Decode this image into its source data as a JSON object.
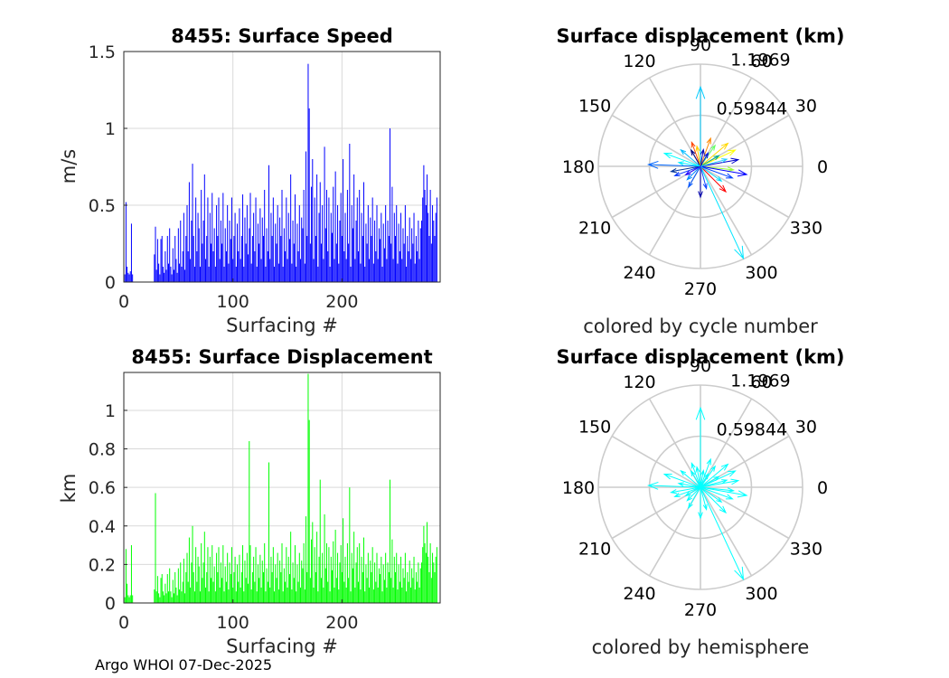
{
  "chart_data": [
    {
      "type": "bar",
      "title": "8455: Surface Speed",
      "xlabel": "Surfacing #",
      "ylabel": "m/s",
      "xlim": [
        0,
        290
      ],
      "ylim": [
        0,
        1.5
      ],
      "xticks": [
        0,
        100,
        200
      ],
      "yticks": [
        0,
        0.5,
        1,
        1.5
      ],
      "xtick_labels": [
        "0",
        "100",
        "200"
      ],
      "ytick_labels": [
        "0",
        "0.5",
        "1",
        "1.5"
      ],
      "color": "#0000ff",
      "series": [
        {
          "name": "speed",
          "values": [
            0.05,
            0.52,
            0.1,
            0.06,
            0.05,
            0.07,
            0.38,
            0.05,
            0,
            0,
            0,
            0,
            0,
            0,
            0,
            0,
            0,
            0,
            0,
            0,
            0,
            0,
            0,
            0,
            0,
            0,
            0,
            0.18,
            0.36,
            0.08,
            0.28,
            0.12,
            0.05,
            0.28,
            0.3,
            0.1,
            0.06,
            0.2,
            0.08,
            0.3,
            0.12,
            0.35,
            0.1,
            0.05,
            0.22,
            0.08,
            0.3,
            0.15,
            0.06,
            0.35,
            0.12,
            0.4,
            0.1,
            0.2,
            0.45,
            0.08,
            0.3,
            0.5,
            0.2,
            0.65,
            0.15,
            0.4,
            0.77,
            0.3,
            0.1,
            0.55,
            0.2,
            0.45,
            0.35,
            0.1,
            0.6,
            0.25,
            0.4,
            0.7,
            0.15,
            0.3,
            0.55,
            0.1,
            0.45,
            0.25,
            0.58,
            0.2,
            0.35,
            0.1,
            0.5,
            0.3,
            0.55,
            0.15,
            0.4,
            0.25,
            0.58,
            0.1,
            0.35,
            0.2,
            0.5,
            0.12,
            0.4,
            0.28,
            0.55,
            0.15,
            0.3,
            0.45,
            0.1,
            0.38,
            0.2,
            0.48,
            0.15,
            0.3,
            0.57,
            0.1,
            0.42,
            0.25,
            0.5,
            0.18,
            0.35,
            0.58,
            0.12,
            0.3,
            0.45,
            0.2,
            0.55,
            0.1,
            0.38,
            0.25,
            0.48,
            0.15,
            0.42,
            0.3,
            0.6,
            0.1,
            0.35,
            0.2,
            0.76,
            0.15,
            0.45,
            0.3,
            0.55,
            0.1,
            0.38,
            0.25,
            0.5,
            0.12,
            0.42,
            0.3,
            0.6,
            0.1,
            0.35,
            0.2,
            0.55,
            0.15,
            0.45,
            0.28,
            0.7,
            0.12,
            0.4,
            0.25,
            0.57,
            0.1,
            0.38,
            0.2,
            0.5,
            0.15,
            0.42,
            0.35,
            0.6,
            0.12,
            0.85,
            0.3,
            1.42,
            1.13,
            0.25,
            0.62,
            0.8,
            0.15,
            0.55,
            0.3,
            0.7,
            0.1,
            0.45,
            0.65,
            0.25,
            0.5,
            0.15,
            0.88,
            0.35,
            0.6,
            0.2,
            0.55,
            0.1,
            0.45,
            0.32,
            0.62,
            0.15,
            0.72,
            0.25,
            0.5,
            0.12,
            0.4,
            0.58,
            0.3,
            0.8,
            0.2,
            0.45,
            0.15,
            0.6,
            0.25,
            0.9,
            0.1,
            0.5,
            0.35,
            0.7,
            0.15,
            0.4,
            0.55,
            0.2,
            0.6,
            0.12,
            0.45,
            0.3,
            0.65,
            0.1,
            0.38,
            0.25,
            0.5,
            0.15,
            0.42,
            0.3,
            0.55,
            0.12,
            0.4,
            0.2,
            0.5,
            0.15,
            0.35,
            0.28,
            0.45,
            0.1,
            0.38,
            0.22,
            0.5,
            0.15,
            0.4,
            0.3,
            1.0,
            0.25,
            0.62,
            0.15,
            0.45,
            0.3,
            0.5,
            0.12,
            0.38,
            0.2,
            0.45,
            0.15,
            0.35,
            0.25,
            0.5,
            0.1,
            0.3,
            0.2,
            0.42,
            0.15,
            0.35,
            0.25,
            0.45,
            0.12,
            0.3,
            0.2,
            0.4,
            0.15,
            0.35,
            0.4,
            0.55,
            0.76,
            0.6,
            0.5,
            0.7,
            0.45,
            0.3,
            0.6,
            0.25,
            0.5,
            0.4,
            0.3,
            0.45,
            0.55
          ]
        }
      ]
    },
    {
      "type": "bar",
      "title": "8455: Surface Displacement",
      "xlabel": "Surfacing #",
      "ylabel": "km",
      "xlim": [
        0,
        290
      ],
      "ylim": [
        0,
        1.1969
      ],
      "xticks": [
        0,
        100,
        200
      ],
      "yticks": [
        0,
        0.2,
        0.4,
        0.6,
        0.8,
        1
      ],
      "xtick_labels": [
        "0",
        "100",
        "200"
      ],
      "ytick_labels": [
        "0",
        "0.2",
        "0.4",
        "0.6",
        "0.8",
        "1"
      ],
      "color": "#00ff00",
      "series": [
        {
          "name": "displacement",
          "values": [
            0.03,
            0.28,
            0.1,
            0.04,
            0.03,
            0.04,
            0.3,
            0.04,
            0,
            0,
            0,
            0,
            0,
            0,
            0,
            0,
            0,
            0,
            0,
            0,
            0,
            0,
            0,
            0,
            0,
            0,
            0,
            0.07,
            0.57,
            0.06,
            0.14,
            0.05,
            0.03,
            0.13,
            0.15,
            0.06,
            0.04,
            0.1,
            0.05,
            0.15,
            0.06,
            0.18,
            0.06,
            0.03,
            0.12,
            0.05,
            0.16,
            0.08,
            0.04,
            0.18,
            0.07,
            0.21,
            0.06,
            0.11,
            0.23,
            0.05,
            0.16,
            0.26,
            0.11,
            0.34,
            0.08,
            0.21,
            0.4,
            0.16,
            0.06,
            0.29,
            0.11,
            0.24,
            0.19,
            0.06,
            0.31,
            0.13,
            0.21,
            0.37,
            0.08,
            0.16,
            0.29,
            0.06,
            0.24,
            0.13,
            0.3,
            0.11,
            0.19,
            0.06,
            0.26,
            0.16,
            0.29,
            0.08,
            0.21,
            0.13,
            0.3,
            0.06,
            0.19,
            0.11,
            0.26,
            0.07,
            0.21,
            0.15,
            0.29,
            0.08,
            0.16,
            0.24,
            0.06,
            0.2,
            0.11,
            0.25,
            0.08,
            0.16,
            0.3,
            0.06,
            0.22,
            0.13,
            0.26,
            0.1,
            0.84,
            0.3,
            0.07,
            0.16,
            0.24,
            0.11,
            0.29,
            0.06,
            0.2,
            0.13,
            0.25,
            0.08,
            0.22,
            0.16,
            0.31,
            0.06,
            0.18,
            0.11,
            0.73,
            0.08,
            0.24,
            0.16,
            0.29,
            0.06,
            0.2,
            0.13,
            0.26,
            0.07,
            0.22,
            0.16,
            0.31,
            0.06,
            0.18,
            0.11,
            0.29,
            0.08,
            0.24,
            0.15,
            0.37,
            0.07,
            0.21,
            0.13,
            0.3,
            0.06,
            0.2,
            0.11,
            0.26,
            0.08,
            0.22,
            0.18,
            0.31,
            0.07,
            0.45,
            0.16,
            1.19,
            0.95,
            0.13,
            0.33,
            0.42,
            0.08,
            0.29,
            0.16,
            0.37,
            0.06,
            0.24,
            0.64,
            0.13,
            0.26,
            0.08,
            0.46,
            0.18,
            0.31,
            0.11,
            0.29,
            0.06,
            0.24,
            0.17,
            0.32,
            0.08,
            0.38,
            0.13,
            0.26,
            0.07,
            0.21,
            0.3,
            0.16,
            0.44,
            0.11,
            0.24,
            0.08,
            0.31,
            0.13,
            0.6,
            0.06,
            0.26,
            0.18,
            0.37,
            0.08,
            0.21,
            0.29,
            0.11,
            0.31,
            0.07,
            0.24,
            0.16,
            0.34,
            0.06,
            0.2,
            0.13,
            0.26,
            0.08,
            0.22,
            0.16,
            0.29,
            0.07,
            0.21,
            0.11,
            0.26,
            0.08,
            0.18,
            0.15,
            0.24,
            0.06,
            0.2,
            0.12,
            0.26,
            0.08,
            0.21,
            0.16,
            0.64,
            0.13,
            0.33,
            0.08,
            0.24,
            0.16,
            0.26,
            0.07,
            0.2,
            0.11,
            0.24,
            0.08,
            0.18,
            0.13,
            0.26,
            0.06,
            0.16,
            0.11,
            0.22,
            0.08,
            0.18,
            0.13,
            0.24,
            0.07,
            0.16,
            0.11,
            0.21,
            0.08,
            0.18,
            0.21,
            0.29,
            0.4,
            0.31,
            0.26,
            0.42,
            0.24,
            0.16,
            0.31,
            0.13,
            0.26,
            0.21,
            0.16,
            0.24,
            0.29
          ]
        }
      ]
    },
    {
      "type": "polar",
      "title": "Surface displacement (km)",
      "caption": "colored by cycle number",
      "rmax": 1.1969,
      "ring_labels": [
        "0.59844",
        "1.1969"
      ],
      "angle_labels": [
        "0",
        "30",
        "60",
        "90",
        "120",
        "150",
        "180",
        "210",
        "240",
        "270",
        "300",
        "330"
      ],
      "vectors": [
        {
          "theta": 90,
          "r": 0.93,
          "color": "#00ccff"
        },
        {
          "theta": 25,
          "r": 0.45,
          "color": "#ffff00"
        },
        {
          "theta": 40,
          "r": 0.42,
          "color": "#ffd700"
        },
        {
          "theta": -6,
          "r": 0.39,
          "color": "#99ff33"
        },
        {
          "theta": -65,
          "r": 1.19,
          "color": "#00e5ff"
        },
        {
          "theta": -45,
          "r": 0.42,
          "color": "#ff0000"
        },
        {
          "theta": 178,
          "r": 0.61,
          "color": "#0066ff"
        },
        {
          "theta": 160,
          "r": 0.45,
          "color": "#00ffff"
        },
        {
          "theta": 70,
          "r": 0.35,
          "color": "#ff8800"
        },
        {
          "theta": 110,
          "r": 0.3,
          "color": "#ff4400"
        },
        {
          "theta": 10,
          "r": 0.45,
          "color": "#0000cc"
        },
        {
          "theta": -20,
          "r": 0.4,
          "color": "#0044ff"
        },
        {
          "theta": -90,
          "r": 0.36,
          "color": "#0000aa"
        },
        {
          "theta": 200,
          "r": 0.32,
          "color": "#0033ff"
        },
        {
          "theta": 140,
          "r": 0.3,
          "color": "#00bbff"
        },
        {
          "theta": -120,
          "r": 0.28,
          "color": "#0055ff"
        },
        {
          "theta": 55,
          "r": 0.3,
          "color": "#66ff66"
        },
        {
          "theta": -10,
          "r": 0.55,
          "color": "#0000ff"
        },
        {
          "theta": 30,
          "r": 0.25,
          "color": "#00aa88"
        },
        {
          "theta": 120,
          "r": 0.22,
          "color": "#000088"
        },
        {
          "theta": 225,
          "r": 0.22,
          "color": "#0088ff"
        },
        {
          "theta": -35,
          "r": 0.3,
          "color": "#00ddff"
        },
        {
          "theta": 80,
          "r": 0.2,
          "color": "#0000bb"
        },
        {
          "theta": 190,
          "r": 0.35,
          "color": "#003399"
        },
        {
          "theta": -75,
          "r": 0.27,
          "color": "#1144ff"
        },
        {
          "theta": 15,
          "r": 0.32,
          "color": "#22ccff"
        },
        {
          "theta": 100,
          "r": 0.24,
          "color": "#ffcc00"
        },
        {
          "theta": 170,
          "r": 0.26,
          "color": "#00eeff"
        },
        {
          "theta": -150,
          "r": 0.2,
          "color": "#2200ff"
        },
        {
          "theta": 60,
          "r": 0.18,
          "color": "#0011dd"
        }
      ]
    },
    {
      "type": "polar",
      "title": "Surface displacement (km)",
      "caption": "colored by hemisphere",
      "rmax": 1.1969,
      "ring_labels": [
        "0.59844",
        "1.1969"
      ],
      "angle_labels": [
        "0",
        "30",
        "60",
        "90",
        "120",
        "150",
        "180",
        "210",
        "240",
        "270",
        "300",
        "330"
      ],
      "color": "#00ffff",
      "vectors": [
        {
          "theta": 90,
          "r": 0.93
        },
        {
          "theta": 25,
          "r": 0.45
        },
        {
          "theta": 40,
          "r": 0.42
        },
        {
          "theta": -6,
          "r": 0.39
        },
        {
          "theta": -65,
          "r": 1.19
        },
        {
          "theta": -45,
          "r": 0.42
        },
        {
          "theta": 178,
          "r": 0.61
        },
        {
          "theta": 160,
          "r": 0.45
        },
        {
          "theta": 70,
          "r": 0.35
        },
        {
          "theta": 110,
          "r": 0.3
        },
        {
          "theta": 10,
          "r": 0.45
        },
        {
          "theta": -20,
          "r": 0.4
        },
        {
          "theta": -90,
          "r": 0.36
        },
        {
          "theta": 200,
          "r": 0.32
        },
        {
          "theta": 140,
          "r": 0.3
        },
        {
          "theta": -120,
          "r": 0.28
        },
        {
          "theta": 55,
          "r": 0.3
        },
        {
          "theta": -10,
          "r": 0.55
        },
        {
          "theta": 30,
          "r": 0.25
        },
        {
          "theta": 120,
          "r": 0.22
        },
        {
          "theta": 225,
          "r": 0.22
        },
        {
          "theta": -35,
          "r": 0.3
        },
        {
          "theta": 80,
          "r": 0.2
        },
        {
          "theta": 190,
          "r": 0.35
        },
        {
          "theta": -75,
          "r": 0.27
        },
        {
          "theta": 15,
          "r": 0.32
        },
        {
          "theta": 100,
          "r": 0.24
        },
        {
          "theta": 170,
          "r": 0.26
        },
        {
          "theta": -150,
          "r": 0.2
        },
        {
          "theta": 60,
          "r": 0.18
        }
      ]
    }
  ],
  "footer": {
    "text": "Argo WHOI 07-Dec-2025"
  }
}
